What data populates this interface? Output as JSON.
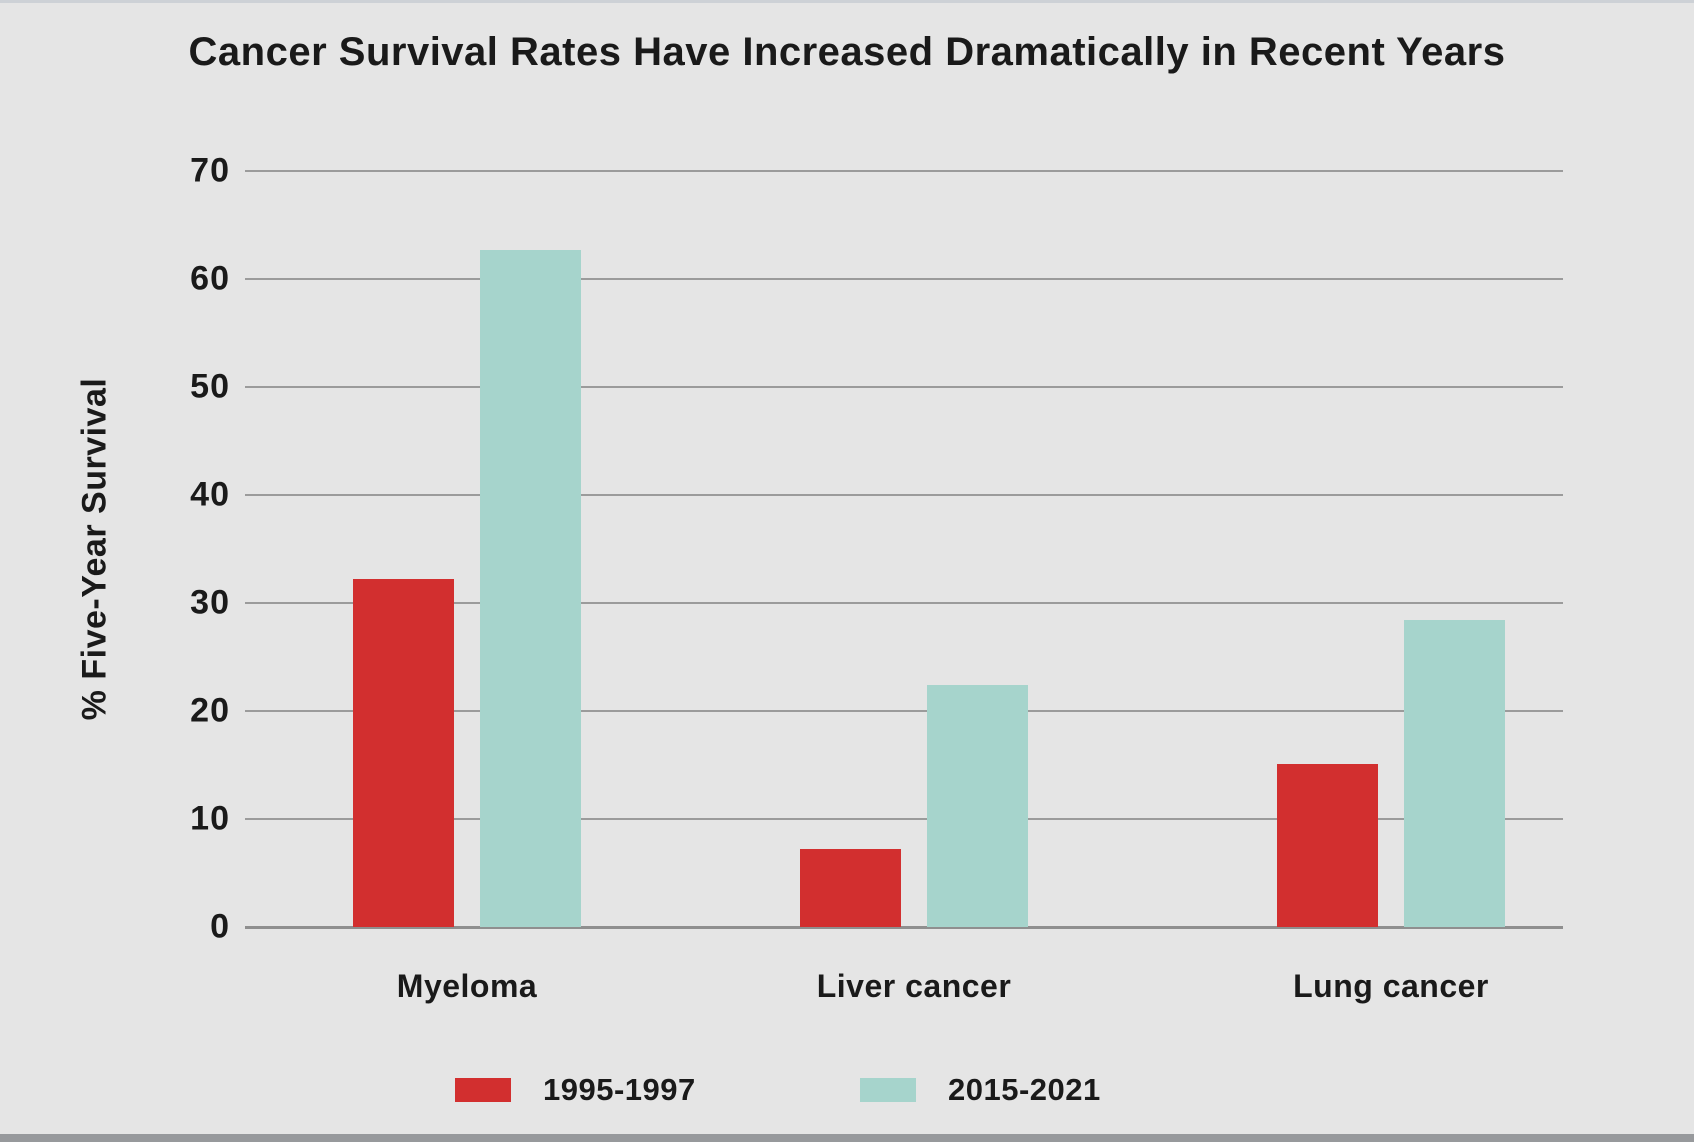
{
  "page": {
    "title": "Cancer Survival Rates Have Increased Dramatically in Recent Years"
  },
  "chart_data": {
    "type": "bar",
    "title": "Cancer Survival Rates Have Increased Dramatically in Recent Years",
    "xlabel": "",
    "ylabel": "% Five-Year Survival",
    "categories": [
      "Myeloma",
      "Liver cancer",
      "Lung cancer"
    ],
    "series": [
      {
        "name": "1995-1997",
        "color": "#d22f2f",
        "values": [
          32.2,
          7.2,
          15.1
        ]
      },
      {
        "name": "2015-2021",
        "color": "#a6d4cc",
        "values": [
          62.7,
          22.4,
          28.4
        ]
      }
    ],
    "ylim": [
      0,
      70
    ],
    "yticks": [
      0,
      10,
      20,
      30,
      40,
      50,
      60,
      70
    ],
    "grid": true,
    "gridline_color": "#9b9b9b",
    "background_color": "#e5e5e5",
    "legend_position": "bottom"
  }
}
